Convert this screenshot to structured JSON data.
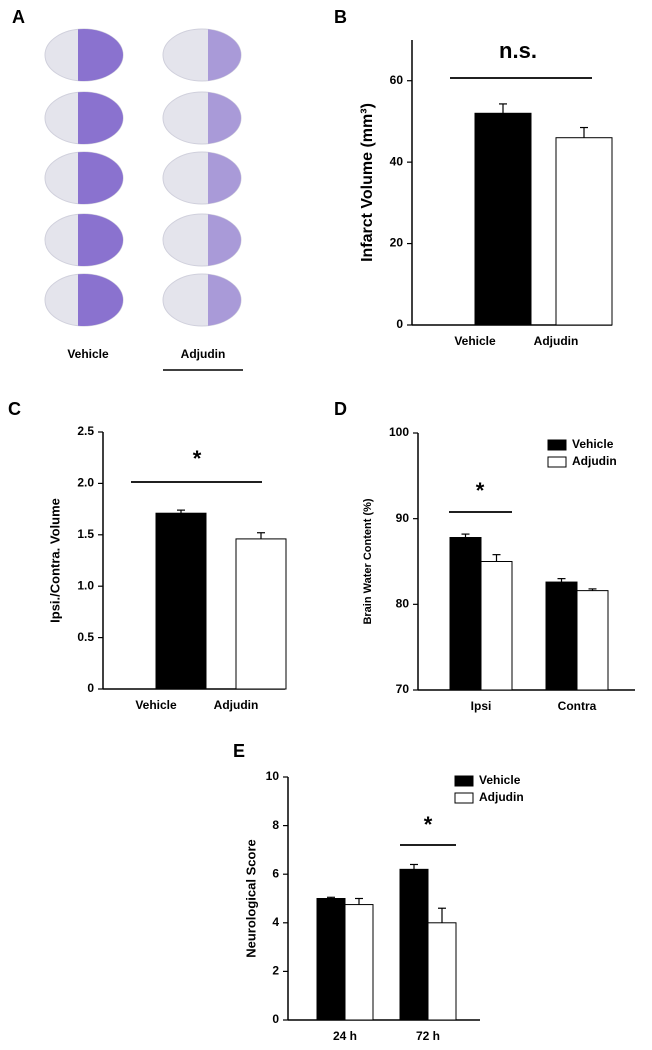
{
  "panel_a": {
    "label": "A",
    "columns": [
      "Vehicle",
      "Adjudin"
    ]
  },
  "chart_data": [
    {
      "type": "bar",
      "panel_label": "B",
      "ylabel": "Infarct Volume (mm³)",
      "annotation": "n.s.",
      "categories": [
        "Vehicle",
        "Adjudin"
      ],
      "values": [
        52,
        46
      ],
      "errors": [
        2.3,
        2.5
      ],
      "colors": [
        "#000000",
        "#ffffff"
      ],
      "ylim": [
        0,
        70
      ],
      "yticks": [
        0,
        20,
        40,
        60
      ]
    },
    {
      "type": "bar",
      "panel_label": "C",
      "ylabel": "Ipsi./Contra. Volume",
      "annotation": "*",
      "categories": [
        "Vehicle",
        "Adjudin"
      ],
      "values": [
        1.71,
        1.46
      ],
      "errors": [
        0.03,
        0.06
      ],
      "colors": [
        "#000000",
        "#ffffff"
      ],
      "ylim": [
        0,
        2.5
      ],
      "yticks": [
        0,
        0.5,
        {
          "value": 1,
          "label": "1.0"
        },
        1.5,
        {
          "value": 2,
          "label": "2.0"
        },
        2.5
      ]
    },
    {
      "type": "grouped-bar",
      "panel_label": "D",
      "ylabel": "Brain Water Content (%)",
      "annotation": "*",
      "legend": "upper right",
      "categories": [
        "Ipsi",
        "Contra"
      ],
      "series": [
        {
          "name": "Vehicle",
          "color": "#000000",
          "values": [
            87.8,
            82.6
          ],
          "errors": [
            0.4,
            0.4
          ]
        },
        {
          "name": "Adjudin",
          "color": "#ffffff",
          "values": [
            85,
            81.6
          ],
          "errors": [
            0.8,
            0.2
          ]
        }
      ],
      "ylim": [
        70,
        100
      ],
      "yticks": [
        70,
        80,
        90,
        100
      ]
    },
    {
      "type": "grouped-bar",
      "panel_label": "E",
      "ylabel": "Neurological  Score",
      "annotation": "*",
      "legend": "upper right",
      "categories": [
        "24 h",
        "72 h"
      ],
      "series": [
        {
          "name": "Vehicle",
          "color": "#000000",
          "values": [
            5,
            6.2
          ],
          "errors": [
            0.05,
            0.2
          ]
        },
        {
          "name": "Adjudin",
          "color": "#ffffff",
          "values": [
            4.75,
            4.0
          ],
          "errors": [
            0.25,
            0.6
          ]
        }
      ],
      "ylim": [
        0,
        10
      ],
      "yticks": [
        0,
        2,
        4,
        6,
        8,
        10
      ]
    }
  ]
}
